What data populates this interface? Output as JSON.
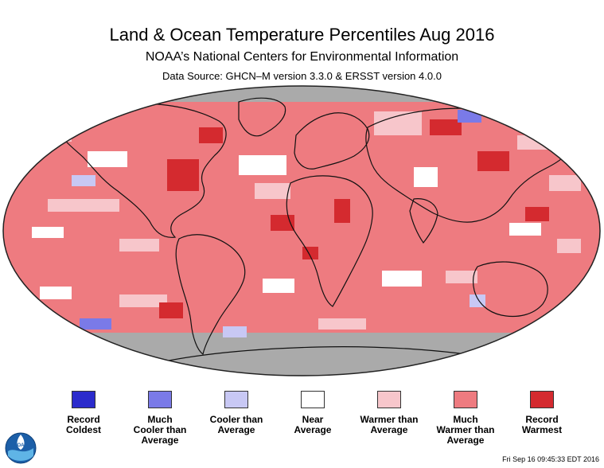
{
  "header": {
    "title": "Land & Ocean Temperature Percentiles Aug 2016",
    "subtitle": "NOAA’s National Centers for Environmental Information",
    "source": "Data Source: GHCN–M version 3.3.0 & ERSST version 4.0.0"
  },
  "legend": {
    "items": [
      {
        "label": "Record\nColdest",
        "color": "#2b2bcc"
      },
      {
        "label": "Much\nCooler than\nAverage",
        "color": "#7a7ae8"
      },
      {
        "label": "Cooler than\nAverage",
        "color": "#c8c8f4"
      },
      {
        "label": "Near\nAverage",
        "color": "#ffffff"
      },
      {
        "label": "Warmer than\nAverage",
        "color": "#f7c6cb"
      },
      {
        "label": "Much\nWarmer than\nAverage",
        "color": "#ee7b80"
      },
      {
        "label": "Record\nWarmest",
        "color": "#d42a2f"
      }
    ]
  },
  "logo": {
    "text": "NOAA",
    "icon": "noaa-logo-icon"
  },
  "footer": {
    "timestamp": "Fri Sep 16 09:45:33 EDT 2016"
  },
  "colors": {
    "missing": "#aaaaaa",
    "much_warmer": "#ee7b80",
    "warmer": "#f7c6cb",
    "record_warm": "#d42a2f",
    "near": "#ffffff",
    "cooler": "#c8c8f4",
    "much_cooler": "#7a7ae8"
  }
}
